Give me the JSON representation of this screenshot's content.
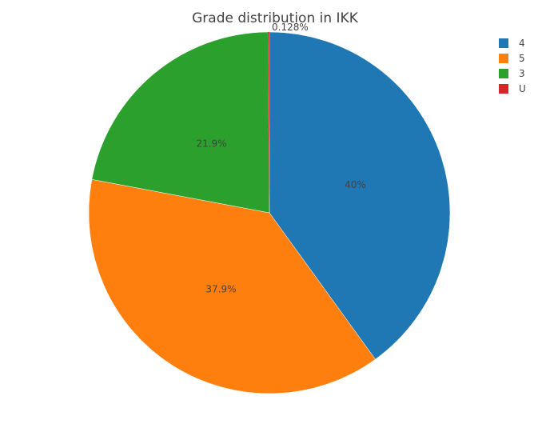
{
  "chart_data": {
    "type": "pie",
    "title": "Grade distribution in IKK",
    "labels": [
      "4",
      "5",
      "3",
      "U"
    ],
    "values": [
      40.0,
      37.9,
      21.9,
      0.128
    ],
    "percent_labels": [
      "40%",
      "37.9%",
      "21.9%",
      "0.128%"
    ],
    "colors": [
      "#1f77b4",
      "#ff7f0e",
      "#2ca02c",
      "#d62728"
    ],
    "legend": {
      "position": "top-right",
      "order": [
        "4",
        "5",
        "3",
        "U"
      ]
    },
    "direction": "clockwise",
    "start": "12 o'clock"
  }
}
